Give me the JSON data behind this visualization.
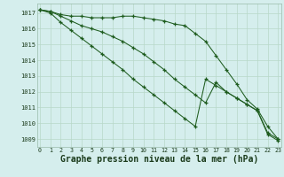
{
  "hours": [
    0,
    1,
    2,
    3,
    4,
    5,
    6,
    7,
    8,
    9,
    10,
    11,
    12,
    13,
    14,
    15,
    16,
    17,
    18,
    19,
    20,
    21,
    22,
    23
  ],
  "line1": [
    1017.2,
    1017.1,
    1016.9,
    1016.8,
    1016.8,
    1016.7,
    1016.7,
    1016.7,
    1016.8,
    1016.8,
    1016.7,
    1016.6,
    1016.5,
    1016.3,
    1016.2,
    1015.7,
    1015.2,
    1014.3,
    1013.4,
    1012.5,
    1011.5,
    1010.9,
    1009.8,
    1009.0
  ],
  "line2": [
    1017.2,
    1017.1,
    1016.8,
    1016.5,
    1016.2,
    1016.0,
    1015.8,
    1015.5,
    1015.2,
    1014.8,
    1014.4,
    1013.9,
    1013.4,
    1012.8,
    1012.3,
    1011.8,
    1011.3,
    1012.6,
    1012.0,
    1011.6,
    1011.2,
    1010.8,
    1009.4,
    1009.0
  ],
  "line3": [
    1017.2,
    1017.0,
    1016.4,
    1015.9,
    1015.4,
    1014.9,
    1014.4,
    1013.9,
    1013.4,
    1012.8,
    1012.3,
    1011.8,
    1011.3,
    1010.8,
    1010.3,
    1009.8,
    1012.8,
    1012.4,
    1012.0,
    1011.6,
    1011.2,
    1010.8,
    1009.3,
    1008.9
  ],
  "bg_color": "#d5eeed",
  "grid_color": "#b8d8c8",
  "line_color": "#1e5c1e",
  "xlabel": "Graphe pression niveau de la mer (hPa)",
  "ylim": [
    1008.5,
    1017.6
  ],
  "yticks": [
    1009,
    1010,
    1011,
    1012,
    1013,
    1014,
    1015,
    1016,
    1017
  ],
  "label_fontsize": 7.0
}
